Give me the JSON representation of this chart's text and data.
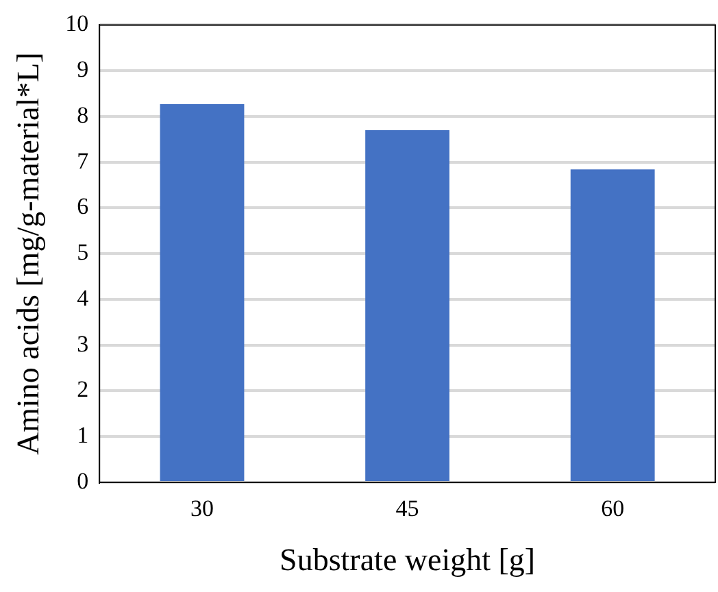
{
  "chart_data": {
    "type": "bar",
    "xlabel": "Substrate weight [g]",
    "ylabel": "Amino acids [mg/g-material*L]",
    "categories": [
      "30",
      "45",
      "60"
    ],
    "values": [
      8.27,
      7.7,
      6.84
    ],
    "color": "#4472c4",
    "ylim": [
      0,
      10
    ],
    "yticks": [
      0,
      1,
      2,
      3,
      4,
      5,
      6,
      7,
      8,
      9,
      10
    ],
    "grid": "y",
    "legend": false
  }
}
